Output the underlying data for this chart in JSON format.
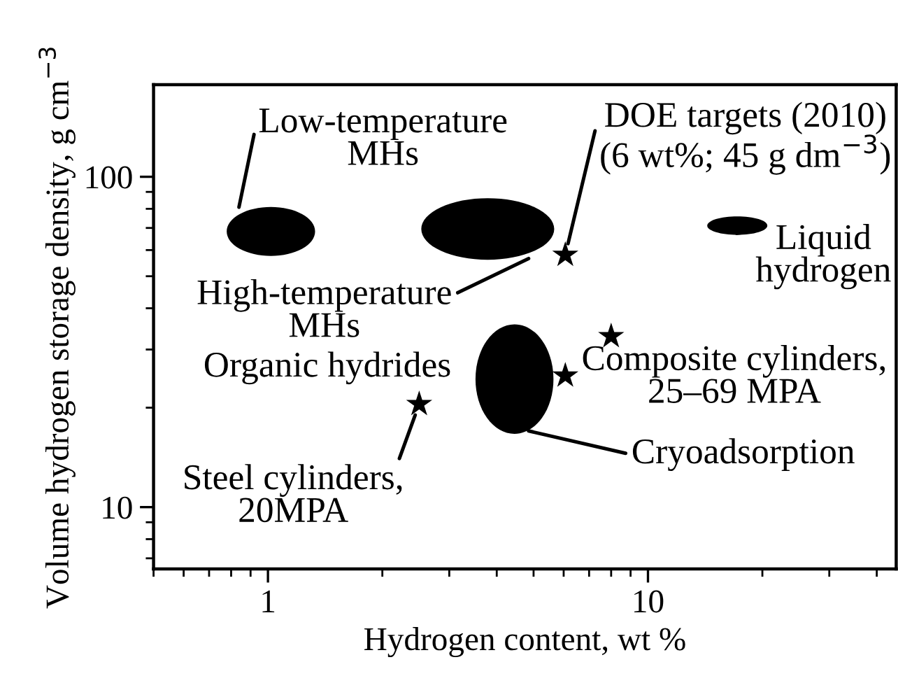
{
  "chart_data": {
    "type": "scatter",
    "xlabel": "Hydrogen content, wt %",
    "ylabel": "Volume hydrogen storage density, g cm$^{−3}$",
    "log": "xy",
    "xlim": [
      0.5,
      45
    ],
    "xticks": [
      1,
      10
    ],
    "ylim": [
      6.5,
      190
    ],
    "yticks": [
      10,
      100
    ],
    "grid": false,
    "series": [
      {
        "marker": "star",
        "color": "#000000",
        "x": [
          8.0,
          6.06,
          2.5,
          6.06
        ],
        "values": [
          32.9,
          25,
          20.5,
          58
        ]
      }
    ],
    "annotations": [
      "Low-temperature\nMHs",
      "High-temperature\nMHs",
      "Organic hydrides",
      {
        "text": "Steel cylinders,\n20MPA",
        "x": 2.5,
        "y": 20.5
      },
      {
        "text": "DOE targets (2010)\n(6 wt%; 45 g dm$^{−3}$)",
        "x": 6.06,
        "y": 58
      },
      "Liquid\nhydrogen",
      "Composite cylinders,\n25–69 MPA",
      "Cryoadsorption"
    ]
  }
}
